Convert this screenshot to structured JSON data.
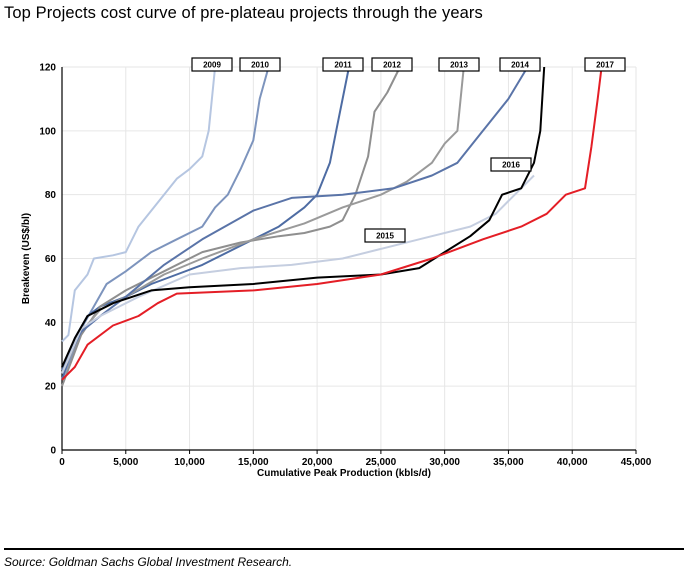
{
  "title": "Top Projects cost curve of pre-plateau projects through the years",
  "source": "Source: Goldman Sachs Global Investment Research.",
  "chart_data": {
    "type": "line",
    "xlabel": "Cumulative Peak Production (kbls/d)",
    "ylabel": "Breakeven (US$/bl)",
    "xlim": [
      0,
      45000
    ],
    "ylim": [
      0,
      120
    ],
    "x_ticks": [
      "0",
      "5,000",
      "10,000",
      "15,000",
      "20,000",
      "25,000",
      "30,000",
      "35,000",
      "40,000",
      "45,000"
    ],
    "y_ticks": [
      "0",
      "20",
      "40",
      "60",
      "80",
      "100",
      "120"
    ],
    "grid": true,
    "series": [
      {
        "name": "2009",
        "color": "#b6c6e1",
        "points": [
          [
            0,
            34
          ],
          [
            500,
            36
          ],
          [
            1000,
            50
          ],
          [
            2000,
            55
          ],
          [
            2500,
            60
          ],
          [
            4000,
            61
          ],
          [
            5000,
            62
          ],
          [
            6000,
            70
          ],
          [
            7000,
            75
          ],
          [
            8000,
            80
          ],
          [
            9000,
            85
          ],
          [
            10000,
            88
          ],
          [
            11000,
            92
          ],
          [
            11500,
            100
          ],
          [
            12000,
            120
          ]
        ]
      },
      {
        "name": "2010",
        "color": "#7d94bd",
        "points": [
          [
            0,
            22
          ],
          [
            800,
            30
          ],
          [
            1500,
            38
          ],
          [
            2500,
            45
          ],
          [
            3500,
            52
          ],
          [
            5000,
            56
          ],
          [
            7000,
            62
          ],
          [
            9000,
            66
          ],
          [
            11000,
            70
          ],
          [
            12000,
            76
          ],
          [
            13000,
            80
          ],
          [
            14000,
            88
          ],
          [
            15000,
            97
          ],
          [
            15500,
            110
          ],
          [
            16200,
            120
          ]
        ]
      },
      {
        "name": "2011",
        "color": "#4e6ca3",
        "points": [
          [
            0,
            22
          ],
          [
            1000,
            35
          ],
          [
            2000,
            42
          ],
          [
            3000,
            45
          ],
          [
            5000,
            48
          ],
          [
            7000,
            52
          ],
          [
            9000,
            55
          ],
          [
            11000,
            58
          ],
          [
            13000,
            62
          ],
          [
            15000,
            66
          ],
          [
            17000,
            70
          ],
          [
            19000,
            76
          ],
          [
            20000,
            80
          ],
          [
            21000,
            90
          ],
          [
            21500,
            100
          ],
          [
            22500,
            120
          ]
        ]
      },
      {
        "name": "2012",
        "color": "#8f8f8f",
        "points": [
          [
            0,
            20
          ],
          [
            1500,
            36
          ],
          [
            3000,
            45
          ],
          [
            5000,
            50
          ],
          [
            8000,
            56
          ],
          [
            11000,
            62
          ],
          [
            14000,
            65
          ],
          [
            17000,
            67
          ],
          [
            19000,
            68
          ],
          [
            21000,
            70
          ],
          [
            22000,
            72
          ],
          [
            23000,
            80
          ],
          [
            24000,
            92
          ],
          [
            24500,
            106
          ],
          [
            25500,
            112
          ],
          [
            26500,
            120
          ]
        ]
      },
      {
        "name": "2013",
        "color": "#9a9a9a",
        "points": [
          [
            0,
            24
          ],
          [
            1500,
            37
          ],
          [
            3000,
            44
          ],
          [
            5000,
            48
          ],
          [
            8000,
            55
          ],
          [
            11000,
            60
          ],
          [
            15000,
            66
          ],
          [
            19000,
            71
          ],
          [
            22000,
            76
          ],
          [
            25000,
            80
          ],
          [
            27000,
            84
          ],
          [
            29000,
            90
          ],
          [
            30000,
            96
          ],
          [
            31000,
            100
          ],
          [
            31500,
            120
          ]
        ]
      },
      {
        "name": "2014",
        "color": "#5a74a8",
        "points": [
          [
            0,
            25
          ],
          [
            1500,
            37
          ],
          [
            3000,
            42
          ],
          [
            5000,
            48
          ],
          [
            8000,
            58
          ],
          [
            11000,
            66
          ],
          [
            15000,
            75
          ],
          [
            18000,
            79
          ],
          [
            22000,
            80
          ],
          [
            26000,
            82
          ],
          [
            29000,
            86
          ],
          [
            31000,
            90
          ],
          [
            33000,
            100
          ],
          [
            35000,
            110
          ],
          [
            36500,
            120
          ]
        ]
      },
      {
        "name": "2015",
        "color": "#c5cee0",
        "points": [
          [
            0,
            24
          ],
          [
            1500,
            38
          ],
          [
            3000,
            42
          ],
          [
            6000,
            48
          ],
          [
            10000,
            55
          ],
          [
            14000,
            57
          ],
          [
            18000,
            58
          ],
          [
            22000,
            60
          ],
          [
            25000,
            63
          ],
          [
            28000,
            66
          ],
          [
            32000,
            70
          ],
          [
            34000,
            74
          ],
          [
            35000,
            78
          ],
          [
            36000,
            82
          ],
          [
            37000,
            86
          ]
        ]
      },
      {
        "name": "2016",
        "color": "#000000",
        "points": [
          [
            0,
            26
          ],
          [
            1000,
            35
          ],
          [
            2000,
            42
          ],
          [
            4000,
            46
          ],
          [
            7000,
            50
          ],
          [
            10000,
            51
          ],
          [
            15000,
            52
          ],
          [
            20000,
            54
          ],
          [
            25000,
            55
          ],
          [
            28000,
            57
          ],
          [
            30000,
            62
          ],
          [
            32000,
            67
          ],
          [
            33500,
            72
          ],
          [
            34500,
            80
          ],
          [
            36000,
            82
          ],
          [
            37000,
            90
          ],
          [
            37500,
            100
          ],
          [
            37800,
            120
          ]
        ]
      },
      {
        "name": "2017",
        "color": "#e41e26",
        "points": [
          [
            0,
            22
          ],
          [
            1000,
            26
          ],
          [
            2000,
            33
          ],
          [
            4000,
            39
          ],
          [
            6000,
            42
          ],
          [
            7500,
            46
          ],
          [
            9000,
            49
          ],
          [
            15000,
            50
          ],
          [
            20000,
            52
          ],
          [
            25000,
            55
          ],
          [
            29000,
            60
          ],
          [
            33000,
            66
          ],
          [
            36000,
            70
          ],
          [
            38000,
            74
          ],
          [
            39500,
            80
          ],
          [
            41000,
            82
          ],
          [
            41500,
            95
          ],
          [
            42000,
            110
          ],
          [
            42300,
            120
          ]
        ]
      }
    ],
    "annotations": [
      "2009",
      "2010",
      "2011",
      "2012",
      "2013",
      "2014",
      "2015",
      "2016",
      "2017"
    ]
  }
}
